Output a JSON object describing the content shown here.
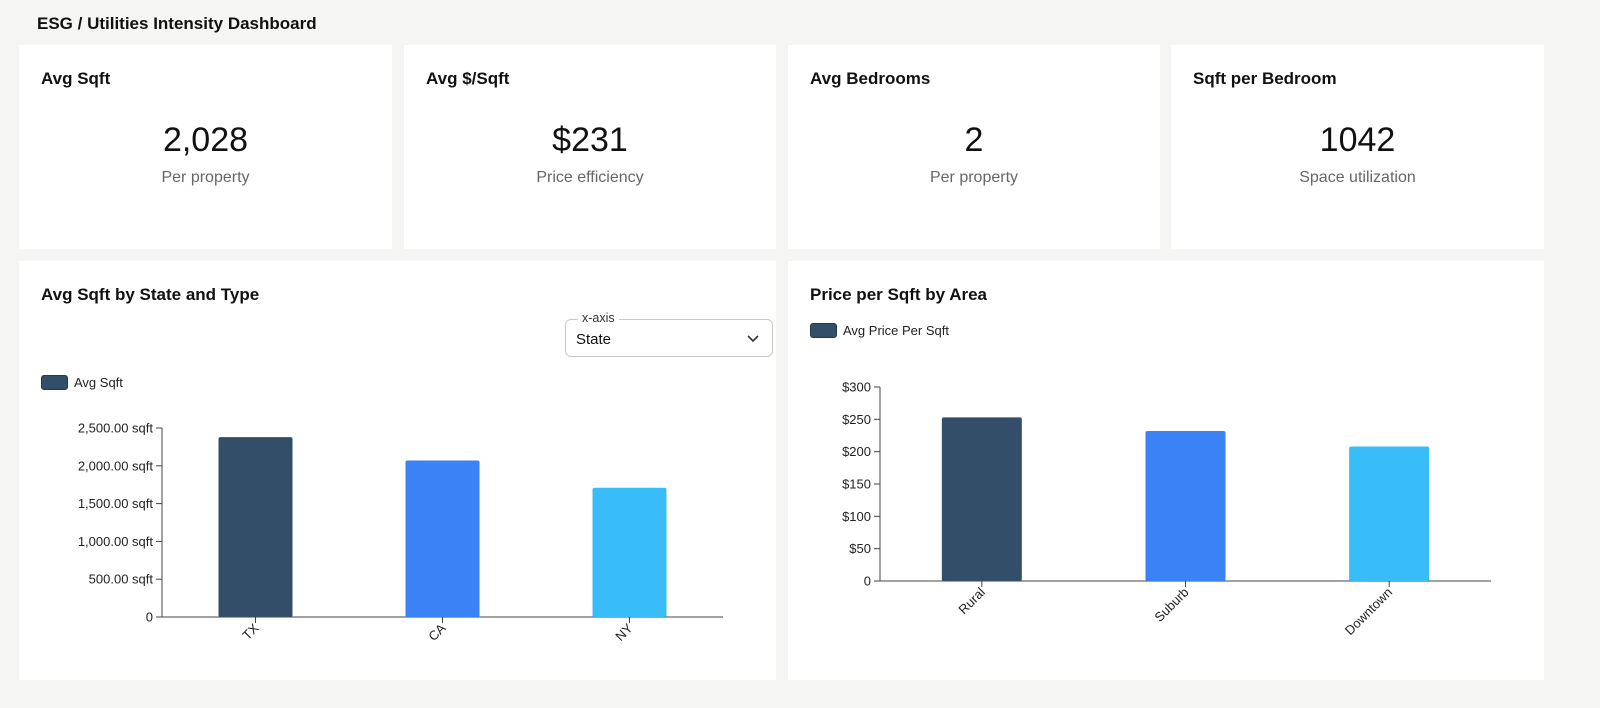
{
  "page": {
    "title": "ESG / Utilities Intensity Dashboard"
  },
  "kpis": [
    {
      "title": "Avg Sqft",
      "value": "2,028",
      "subtitle": "Per property"
    },
    {
      "title": "Avg $/Sqft",
      "value": "$231",
      "subtitle": "Price efficiency"
    },
    {
      "title": "Avg Bedrooms",
      "value": "2",
      "subtitle": "Per property"
    },
    {
      "title": "Sqft per Bedroom",
      "value": "1042",
      "subtitle": "Space utilization"
    }
  ],
  "left_panel": {
    "title": "Avg Sqft by State and Type",
    "select": {
      "legend": "x-axis",
      "value": "State",
      "icon": "chevron-down-icon"
    },
    "legend_label": "Avg Sqft"
  },
  "right_panel": {
    "title": "Price per Sqft by Area",
    "legend_label": "Avg Price Per Sqft"
  },
  "colors": {
    "c1": "#334e68",
    "c2": "#3b82f6",
    "c3": "#38bdf8"
  },
  "chart_data": [
    {
      "type": "bar",
      "title": "Avg Sqft by State and Type",
      "categories": [
        "TX",
        "CA",
        "NY"
      ],
      "series": [
        {
          "name": "Avg Sqft",
          "values": [
            2380,
            2070,
            1710
          ]
        }
      ],
      "ylim": [
        0,
        2500
      ],
      "yticks": [
        0,
        500,
        1000,
        1500,
        2000,
        2500
      ],
      "ytick_labels": [
        "0",
        "500.00 sqft",
        "1,000.00 sqft",
        "1,500.00 sqft",
        "2,000.00 sqft",
        "2,500.00 sqft"
      ],
      "grid": false,
      "legend": "top-left",
      "bar_colors": [
        "#334e68",
        "#3b82f6",
        "#38bdf8"
      ]
    },
    {
      "type": "bar",
      "title": "Price per Sqft by Area",
      "categories": [
        "Rural",
        "Suburb",
        "Downtown"
      ],
      "series": [
        {
          "name": "Avg Price Per Sqft",
          "values": [
            253,
            232,
            208
          ]
        }
      ],
      "ylim": [
        0,
        300
      ],
      "yticks": [
        0,
        50,
        100,
        150,
        200,
        250,
        300
      ],
      "ytick_labels": [
        "0",
        "$50",
        "$100",
        "$150",
        "$200",
        "$250",
        "$300"
      ],
      "grid": false,
      "legend": "top-left",
      "bar_colors": [
        "#334e68",
        "#3b82f6",
        "#38bdf8"
      ]
    }
  ]
}
